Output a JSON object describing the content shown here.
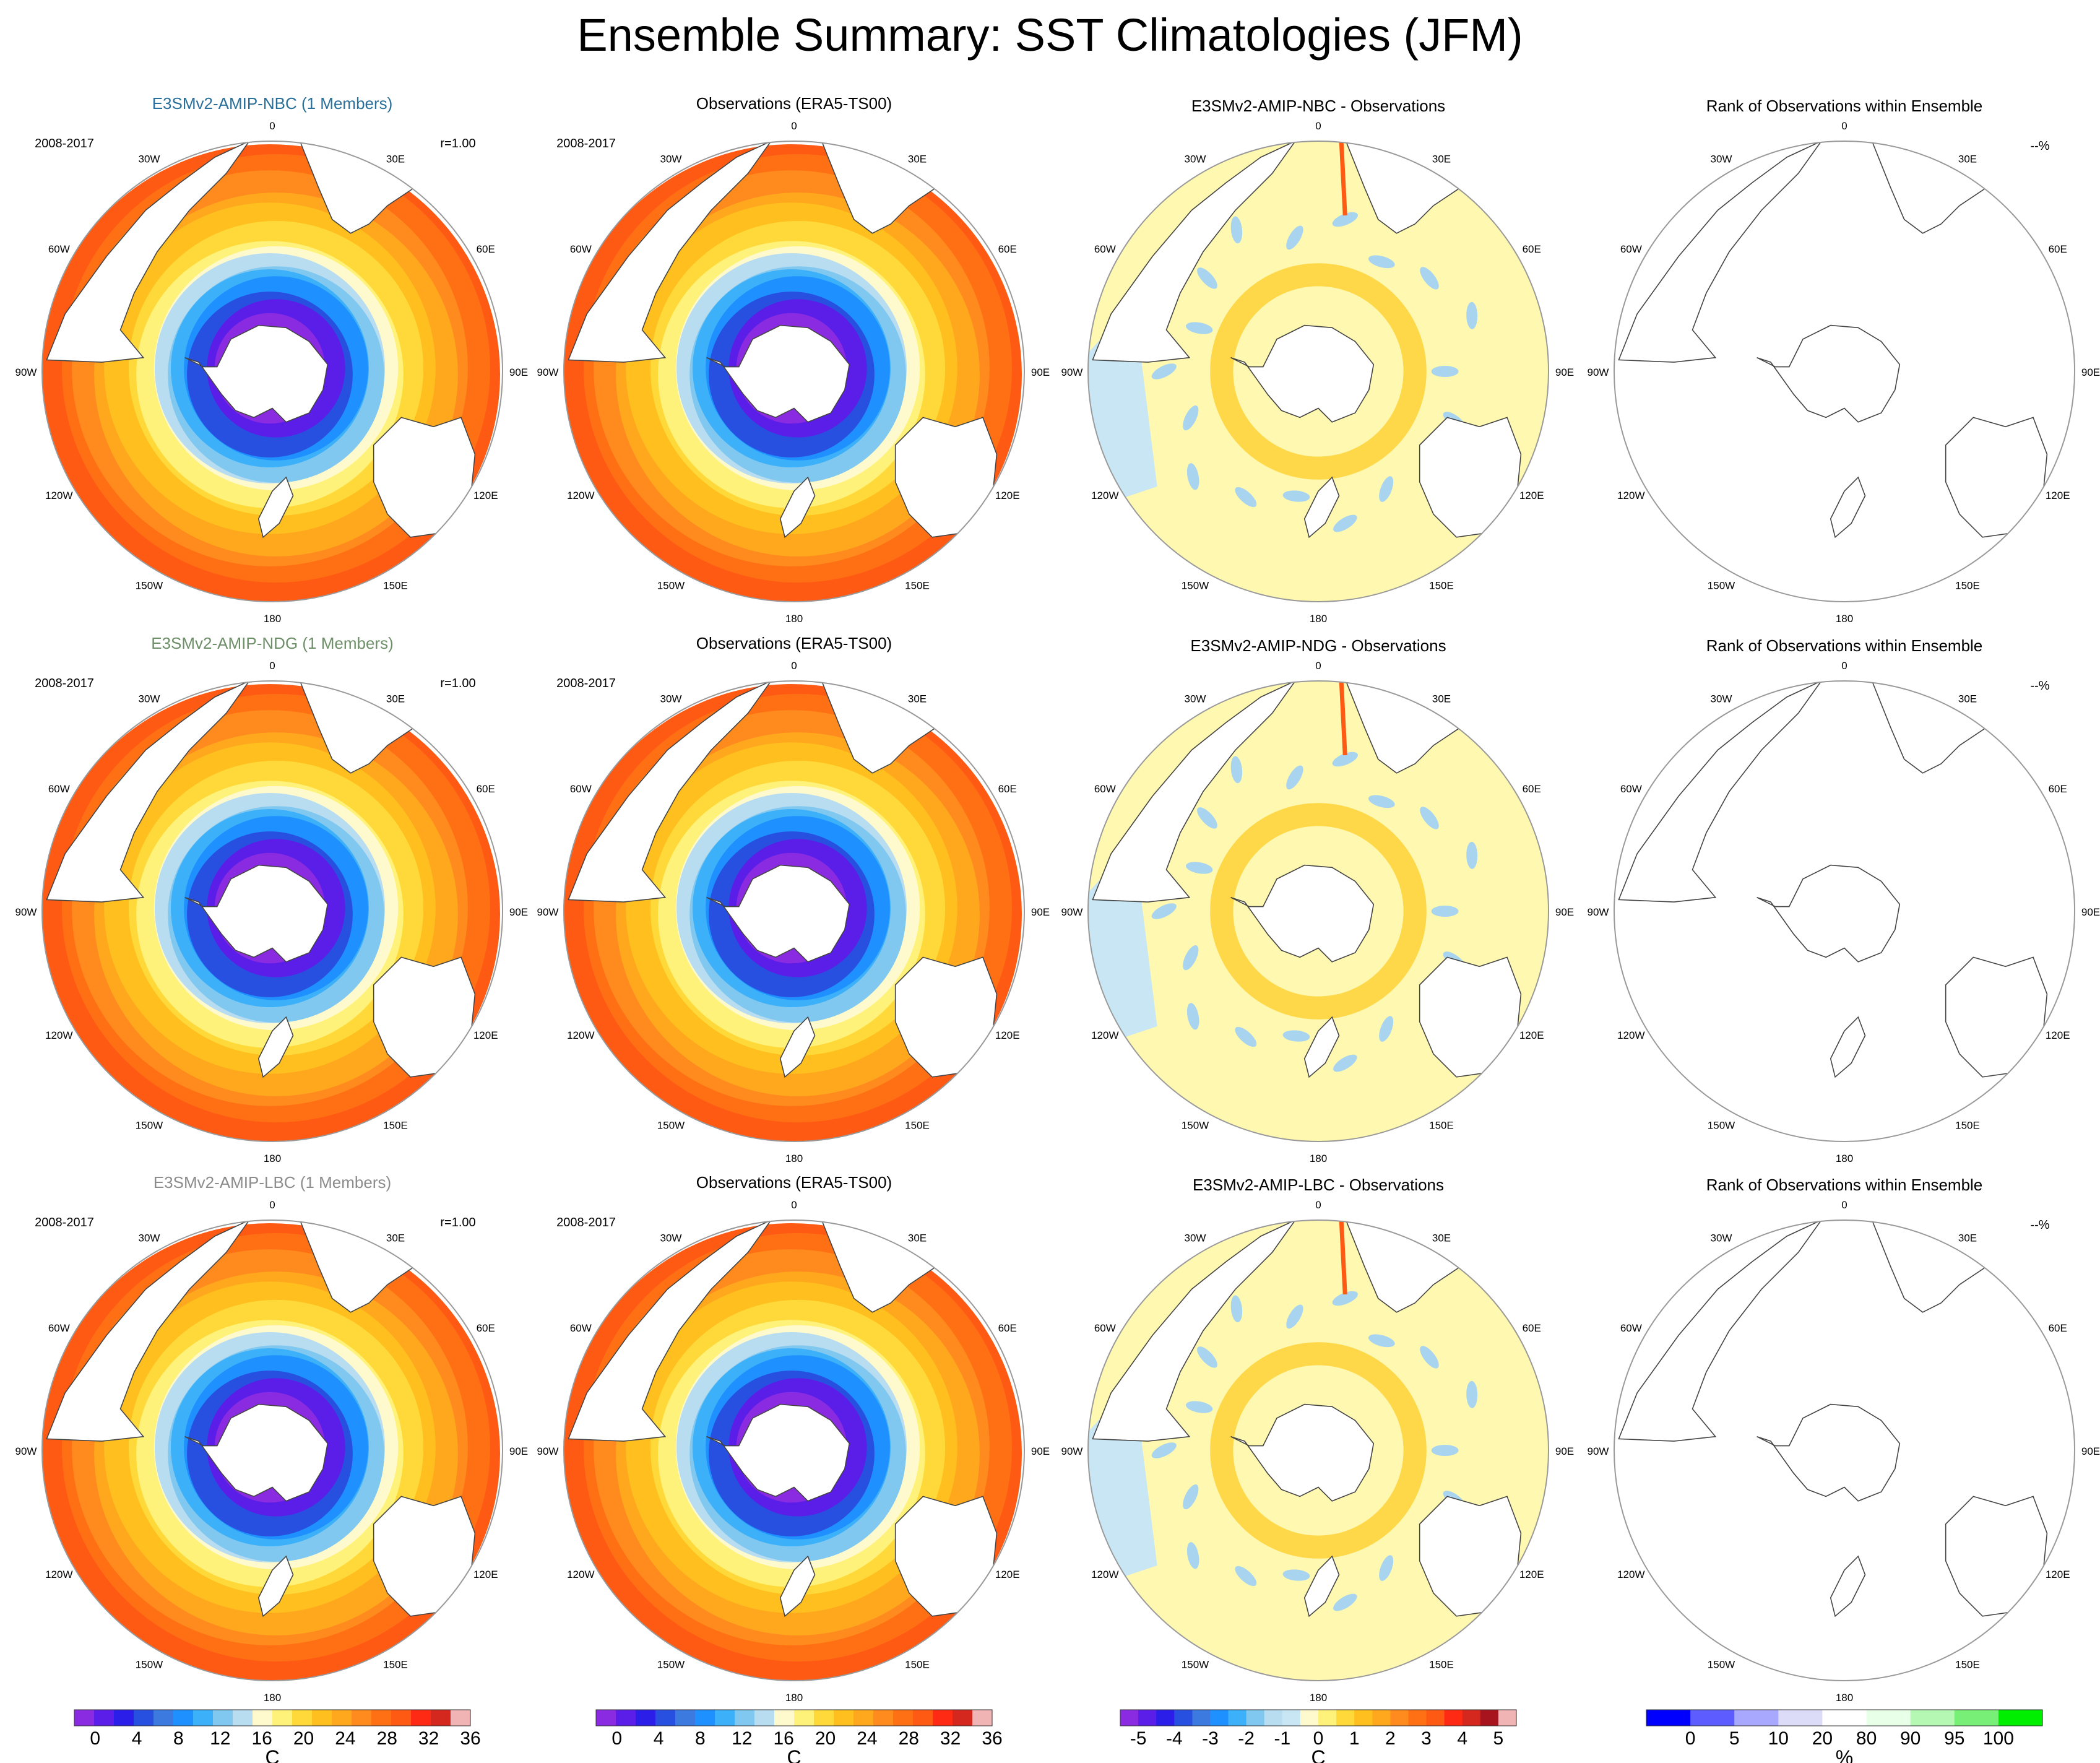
{
  "title": "Ensemble Summary: SST Climatologies (JFM)",
  "lon_labels": [
    "0",
    "30E",
    "60E",
    "90E",
    "120E",
    "150E",
    "180",
    "150W",
    "120W",
    "90W",
    "60W",
    "30W"
  ],
  "period": "2008-2017",
  "corr_label": "r=1.00",
  "rank_marker": "--%",
  "colors": {
    "land": "#ffffff",
    "coast": "#444444",
    "model_nbc": "#2a6f9a",
    "model_ndg": "#6f8f6a",
    "model_lbc": "#8c8c8c"
  },
  "rows": [
    {
      "model_title": "E3SMv2-AMIP-NBC (1 Members)",
      "obs_title": "Observations (ERA5-TS00)",
      "diff_title": "E3SMv2-AMIP-NBC - Observations",
      "rank_title": "Rank of Observations within Ensemble"
    },
    {
      "model_title": "E3SMv2-AMIP-NDG (1 Members)",
      "obs_title": "Observations (ERA5-TS00)",
      "diff_title": "E3SMv2-AMIP-NDG - Observations",
      "rank_title": "Rank of Observations within Ensemble"
    },
    {
      "model_title": "E3SMv2-AMIP-LBC (1 Members)",
      "obs_title": "Observations (ERA5-TS00)",
      "diff_title": "E3SMv2-AMIP-LBC - Observations",
      "rank_title": "Rank of Observations within Ensemble"
    }
  ],
  "chart_data": [
    {
      "type": "heatmap",
      "projection": "south-polar-stereographic",
      "variable": "SST climatology",
      "season": "JFM",
      "period": "2008-2017",
      "unit": "C",
      "tick_labels": [
        "0",
        "4",
        "8",
        "12",
        "16",
        "20",
        "24",
        "28",
        "32",
        "36"
      ],
      "levels": [
        -2,
        0,
        2,
        4,
        6,
        8,
        10,
        12,
        14,
        16,
        18,
        20,
        22,
        24,
        26,
        28,
        30,
        32,
        34,
        36
      ],
      "colors": [
        "#8a2be2",
        "#5a1ee8",
        "#2a1ee8",
        "#2850e0",
        "#3c7ae0",
        "#1e90ff",
        "#3cb0f8",
        "#80c8f0",
        "#b8dcf0",
        "#fffacd",
        "#fff27a",
        "#ffd93a",
        "#ffbf1e",
        "#ffa81e",
        "#ff8a1e",
        "#ff7014",
        "#ff5a14",
        "#ff2a14",
        "#d4281e",
        "#f0b4b4"
      ],
      "panels": [
        "E3SMv2-AMIP-NBC",
        "Observations (ERA5-TS00)",
        "E3SMv2-AMIP-NDG",
        "Observations (ERA5-TS00)",
        "E3SMv2-AMIP-LBC",
        "Observations (ERA5-TS00)"
      ],
      "pattern": {
        "continent_edge": -1.8,
        "lat_60S": 2,
        "lat_45S": 10,
        "lat_30S": 20,
        "lat_20S": 25,
        "lat_10S": 28
      }
    },
    {
      "type": "heatmap",
      "projection": "south-polar-stereographic",
      "variable": "Model - Observations SST difference",
      "unit": "C",
      "tick_labels": [
        "-5",
        "-4",
        "-3",
        "-2",
        "-1",
        "0",
        "1",
        "2",
        "3",
        "4",
        "5"
      ],
      "levels": [
        -5.5,
        -5,
        -4.5,
        -4,
        -3.5,
        -3,
        -2.5,
        -2,
        -1.5,
        -1,
        -0.5,
        0,
        0.5,
        1,
        1.5,
        2,
        2.5,
        3,
        3.5,
        4,
        4.5,
        5,
        5.5
      ],
      "colors": [
        "#8a2be2",
        "#5a1ee8",
        "#2a1ee8",
        "#2850e0",
        "#3c7ae0",
        "#1e90ff",
        "#3cb0f8",
        "#80c8f0",
        "#b8dcf0",
        "#c8e6f4",
        "#fffacd",
        "#fff27a",
        "#ffd93a",
        "#ffbf1e",
        "#ffa81e",
        "#ff8a1e",
        "#ff7014",
        "#ff5a14",
        "#ff2a14",
        "#d4281e",
        "#a8141e",
        "#f0b4b4"
      ],
      "panels": [
        "E3SMv2-AMIP-NBC - Observations",
        "E3SMv2-AMIP-NDG - Observations",
        "E3SMv2-AMIP-LBC - Observations"
      ],
      "pattern": {
        "dominant_range": [
          -0.5,
          0.5
        ],
        "ring_around_antarctica": [
          0.5,
          1.0
        ],
        "western_boundary_currents": [
          -3,
          4
        ]
      }
    },
    {
      "type": "heatmap",
      "projection": "south-polar-stereographic",
      "variable": "Rank of Observations within Ensemble",
      "unit": "%",
      "tick_labels": [
        "0",
        "5",
        "10",
        "20",
        "80",
        "90",
        "95",
        "100"
      ],
      "levels": [
        0,
        5,
        10,
        20,
        80,
        90,
        95,
        100
      ],
      "colors": [
        "#0000ff",
        "#5c5cff",
        "#a8a8ff",
        "#dcdcf8",
        "#ffffff",
        "#e8ffe8",
        "#b4f8b4",
        "#78f078",
        "#00ee00"
      ],
      "panels": [
        "Rank NBC",
        "Rank NDG",
        "Rank LBC"
      ],
      "values": "no data plotted (blank maps)"
    }
  ]
}
